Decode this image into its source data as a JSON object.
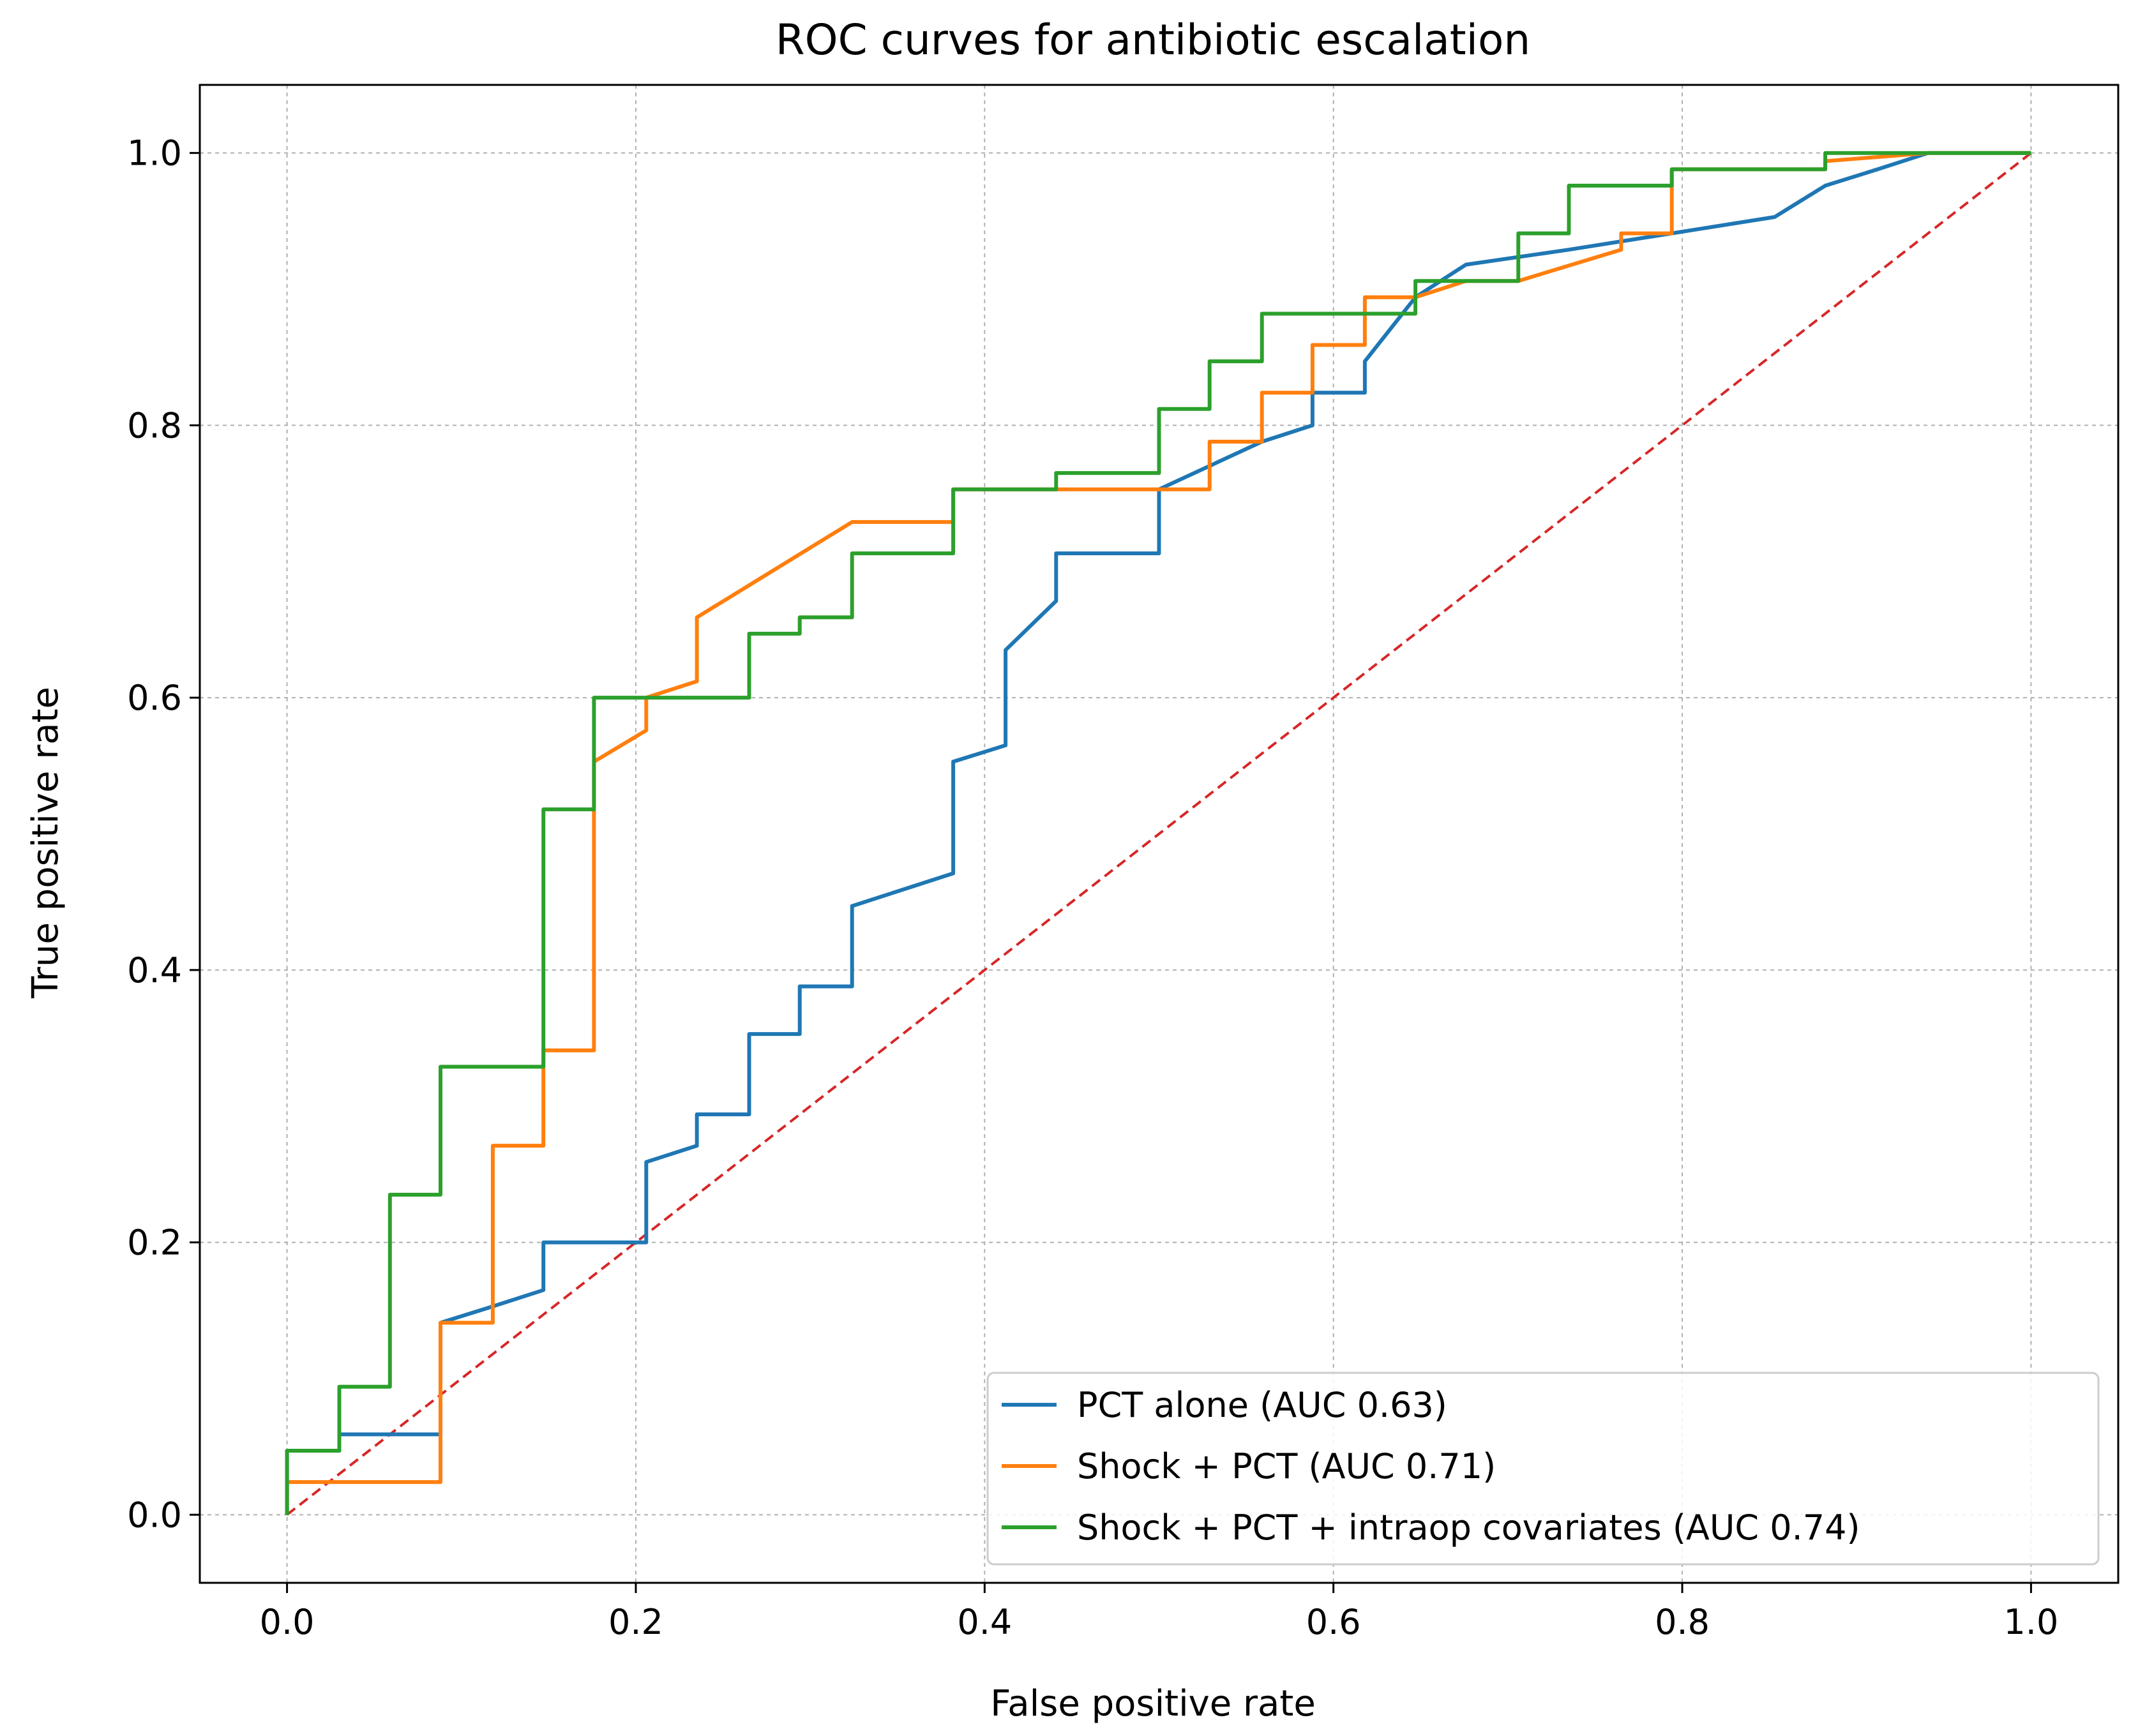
{
  "chart_data": {
    "type": "line",
    "title": "ROC curves for antibiotic escalation",
    "xlabel": "False positive rate",
    "ylabel": "True positive rate",
    "xlim": [
      -0.05,
      1.05
    ],
    "ylim": [
      -0.05,
      1.05
    ],
    "xticks": [
      0.0,
      0.2,
      0.4,
      0.6,
      0.8,
      1.0
    ],
    "yticks": [
      0.0,
      0.2,
      0.4,
      0.6,
      0.8,
      1.0
    ],
    "xtick_labels": [
      "0.0",
      "0.2",
      "0.4",
      "0.6",
      "0.8",
      "1.0"
    ],
    "ytick_labels": [
      "0.0",
      "0.2",
      "0.4",
      "0.6",
      "0.8",
      "1.0"
    ],
    "grid": true,
    "legend_position": "lower-right",
    "series": [
      {
        "name": "PCT alone (AUC 0.63)",
        "color": "#1f77b4",
        "style": "solid",
        "x": [
          0.0,
          0.0,
          0.03,
          0.03,
          0.088,
          0.088,
          0.118,
          0.147,
          0.147,
          0.176,
          0.206,
          0.206,
          0.235,
          0.235,
          0.265,
          0.265,
          0.294,
          0.294,
          0.324,
          0.324,
          0.382,
          0.382,
          0.412,
          0.412,
          0.441,
          0.441,
          0.5,
          0.5,
          0.559,
          0.588,
          0.588,
          0.618,
          0.618,
          0.647,
          0.676,
          0.735,
          0.794,
          0.853,
          0.882,
          0.912,
          0.941,
          1.0
        ],
        "y": [
          0.0,
          0.047,
          0.047,
          0.059,
          0.059,
          0.141,
          0.153,
          0.165,
          0.2,
          0.2,
          0.2,
          0.259,
          0.271,
          0.294,
          0.294,
          0.353,
          0.353,
          0.388,
          0.388,
          0.447,
          0.471,
          0.553,
          0.565,
          0.635,
          0.671,
          0.706,
          0.706,
          0.753,
          0.788,
          0.8,
          0.824,
          0.824,
          0.847,
          0.894,
          0.918,
          0.929,
          0.941,
          0.953,
          0.976,
          0.988,
          1.0,
          1.0
        ]
      },
      {
        "name": "Shock + PCT (AUC 0.71)",
        "color": "#ff7f0e",
        "style": "solid",
        "x": [
          0.0,
          0.0,
          0.088,
          0.088,
          0.118,
          0.118,
          0.147,
          0.147,
          0.176,
          0.176,
          0.206,
          0.206,
          0.235,
          0.235,
          0.324,
          0.382,
          0.382,
          0.441,
          0.5,
          0.529,
          0.529,
          0.559,
          0.559,
          0.588,
          0.588,
          0.618,
          0.618,
          0.647,
          0.676,
          0.706,
          0.765,
          0.765,
          0.794,
          0.794,
          0.882,
          0.882,
          0.941,
          1.0
        ],
        "y": [
          0.0,
          0.024,
          0.024,
          0.141,
          0.141,
          0.271,
          0.271,
          0.341,
          0.341,
          0.553,
          0.576,
          0.6,
          0.612,
          0.659,
          0.729,
          0.729,
          0.753,
          0.753,
          0.753,
          0.753,
          0.788,
          0.788,
          0.824,
          0.824,
          0.859,
          0.859,
          0.894,
          0.894,
          0.906,
          0.906,
          0.929,
          0.941,
          0.941,
          0.988,
          0.988,
          0.994,
          1.0,
          1.0
        ]
      },
      {
        "name": "Shock + PCT + intraop covariates (AUC 0.74)",
        "color": "#2ca02c",
        "style": "solid",
        "x": [
          0.0,
          0.0,
          0.03,
          0.03,
          0.059,
          0.059,
          0.088,
          0.088,
          0.147,
          0.147,
          0.176,
          0.176,
          0.265,
          0.265,
          0.294,
          0.294,
          0.324,
          0.324,
          0.382,
          0.382,
          0.441,
          0.441,
          0.5,
          0.5,
          0.529,
          0.529,
          0.559,
          0.559,
          0.647,
          0.647,
          0.706,
          0.706,
          0.735,
          0.735,
          0.794,
          0.794,
          0.882,
          0.882,
          1.0
        ],
        "y": [
          0.0,
          0.047,
          0.047,
          0.094,
          0.094,
          0.235,
          0.235,
          0.329,
          0.329,
          0.518,
          0.518,
          0.6,
          0.6,
          0.647,
          0.647,
          0.659,
          0.659,
          0.706,
          0.706,
          0.753,
          0.753,
          0.765,
          0.765,
          0.812,
          0.812,
          0.847,
          0.847,
          0.882,
          0.882,
          0.906,
          0.906,
          0.941,
          0.941,
          0.976,
          0.976,
          0.988,
          0.988,
          1.0,
          1.0
        ]
      },
      {
        "name": "Chance",
        "color": "#d62728",
        "style": "dashed",
        "legend": false,
        "x": [
          0.0,
          1.0
        ],
        "y": [
          0.0,
          1.0
        ]
      }
    ]
  }
}
